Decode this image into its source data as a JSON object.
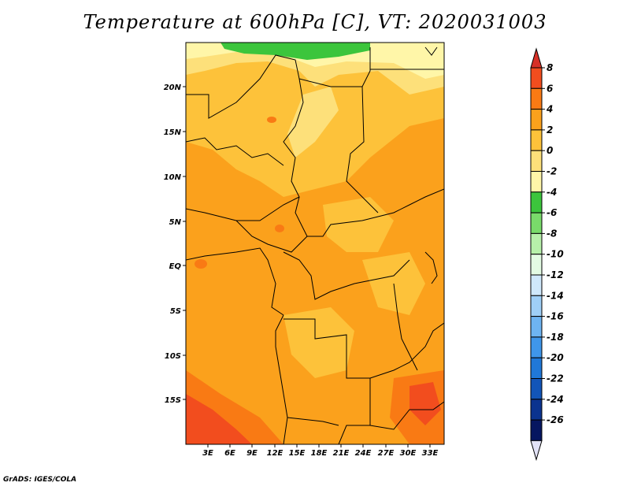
{
  "title": "Temperature at 600hPa [C], VT: 2020031003",
  "credit": "GrADS: IGES/COLA",
  "map": {
    "lat_ticks": [
      "20N",
      "15N",
      "10N",
      "5N",
      "EQ",
      "5S",
      "10S",
      "15S"
    ],
    "lon_ticks": [
      "3E",
      "6E",
      "9E",
      "12E",
      "15E",
      "18E",
      "21E",
      "24E",
      "27E",
      "30E",
      "33E"
    ]
  },
  "colorbar": {
    "labels": [
      "8",
      "6",
      "4",
      "2",
      "0",
      "-2",
      "-4",
      "-6",
      "-8",
      "-10",
      "-12",
      "-14",
      "-16",
      "-18",
      "-20",
      "-22",
      "-24",
      "-26"
    ],
    "colors": [
      "#d73027",
      "#f24d1e",
      "#f97a14",
      "#fba11c",
      "#fdc23a",
      "#fde07a",
      "#fff6a8",
      "#3cc53c",
      "#79db6a",
      "#b7f0aa",
      "#e3fbe3",
      "#cfe8fb",
      "#9fcff7",
      "#6eb4f2",
      "#3f96ea",
      "#2078d8",
      "#1255b8",
      "#0b338f",
      "#061660",
      "#e2e2f6"
    ]
  }
}
